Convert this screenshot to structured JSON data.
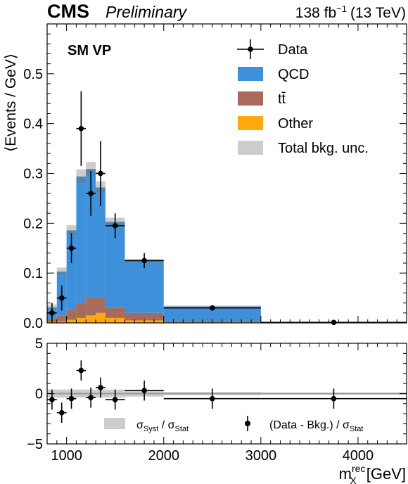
{
  "header": {
    "experiment": "CMS",
    "status": "Preliminary",
    "lumi_value": "138 fb",
    "lumi_exp": "−1",
    "energy": "(13 TeV)"
  },
  "chart_data": [
    {
      "type": "bar",
      "stacked": true,
      "annotation": "SM VP",
      "ylabel": "⟨Events / GeV⟩",
      "ylim": [
        0,
        0.6
      ],
      "yticks": [
        0.0,
        0.1,
        0.2,
        0.3,
        0.4,
        0.5
      ],
      "ytick_labels": [
        "0.0",
        "0.1",
        "0.2",
        "0.3",
        "0.4",
        "0.5"
      ],
      "xlim": [
        800,
        4500
      ],
      "bins": [
        [
          800,
          900
        ],
        [
          900,
          1000
        ],
        [
          1000,
          1100
        ],
        [
          1100,
          1200
        ],
        [
          1200,
          1300
        ],
        [
          1300,
          1400
        ],
        [
          1400,
          1600
        ],
        [
          1600,
          2000
        ],
        [
          2000,
          3000
        ],
        [
          3000,
          4500
        ]
      ],
      "series": [
        {
          "name": "Other",
          "color": "#ffa90e",
          "values": [
            0.002,
            0.003,
            0.006,
            0.01,
            0.015,
            0.02,
            0.01,
            0.005,
            0.001,
            0.0001
          ]
        },
        {
          "name": "tt̄",
          "color": "#a96b59",
          "values": [
            0.006,
            0.012,
            0.02,
            0.03,
            0.035,
            0.03,
            0.02,
            0.015,
            0.003,
            0.0002
          ]
        },
        {
          "name": "QCD",
          "color": "#3f90da",
          "values": [
            0.017,
            0.08,
            0.15,
            0.24,
            0.245,
            0.21,
            0.165,
            0.102,
            0.027,
            0.0005
          ]
        }
      ],
      "bkg_unc": [
        0.006,
        0.008,
        0.01,
        0.014,
        0.014,
        0.012,
        0.008,
        0.003,
        0.002,
        0.0003
      ],
      "bkg_unc_color": "#cccccc",
      "data": {
        "name": "Data",
        "x": [
          850,
          950,
          1050,
          1150,
          1250,
          1350,
          1500,
          1800,
          2500,
          3750
        ],
        "y": [
          0.02,
          0.05,
          0.15,
          0.39,
          0.26,
          0.3,
          0.195,
          0.125,
          0.03,
          0.001
        ],
        "yerr": [
          0.02,
          0.025,
          0.03,
          0.075,
          0.045,
          0.065,
          0.025,
          0.015,
          0.004,
          0.001
        ]
      },
      "legend": {
        "placement": "top-right",
        "entries": [
          {
            "label": "Data",
            "kind": "marker"
          },
          {
            "label": "QCD",
            "kind": "box",
            "color": "#3f90da"
          },
          {
            "label": "tt̄",
            "kind": "box",
            "color": "#a96b59"
          },
          {
            "label": "Other",
            "kind": "box",
            "color": "#ffa90e"
          },
          {
            "label": "Total bkg. unc.",
            "kind": "box",
            "color": "#cccccc"
          }
        ]
      }
    },
    {
      "type": "scatter",
      "ylim": [
        -5,
        5
      ],
      "yticks": [
        -5,
        0,
        5
      ],
      "ytick_labels": [
        "−5",
        "0",
        "5"
      ],
      "xlim": [
        800,
        4500
      ],
      "xticks": [
        1000,
        2000,
        3000,
        4000
      ],
      "xtick_labels": [
        "1000",
        "2000",
        "3000",
        "4000"
      ],
      "xlabel": "m",
      "xlabel_sub": "X",
      "xlabel_sup": "rec",
      "xlabel_unit": "[GeV]",
      "syst_band": [
        0.4,
        0.4,
        0.4,
        0.4,
        0.4,
        0.4,
        0.4,
        0.3,
        0.15,
        0.1
      ],
      "syst_color": "#cccccc",
      "pulls": {
        "x": [
          850,
          950,
          1050,
          1150,
          1250,
          1350,
          1500,
          1800,
          2500,
          3750
        ],
        "y": [
          -0.6,
          -1.9,
          -0.5,
          2.3,
          -0.4,
          0.6,
          -0.6,
          0.3,
          -0.5,
          -0.5
        ],
        "yerr": [
          1,
          1,
          1,
          1,
          1,
          1,
          1,
          1,
          1,
          1
        ]
      },
      "legend": {
        "placement": "bottom",
        "syst_label": "σ",
        "syst_sub": "Syst",
        "syst_div": " / σ",
        "syst_sub2": "Stat",
        "pull_label": "(Data - Bkg.) / σ",
        "pull_sub": "Stat"
      }
    }
  ]
}
